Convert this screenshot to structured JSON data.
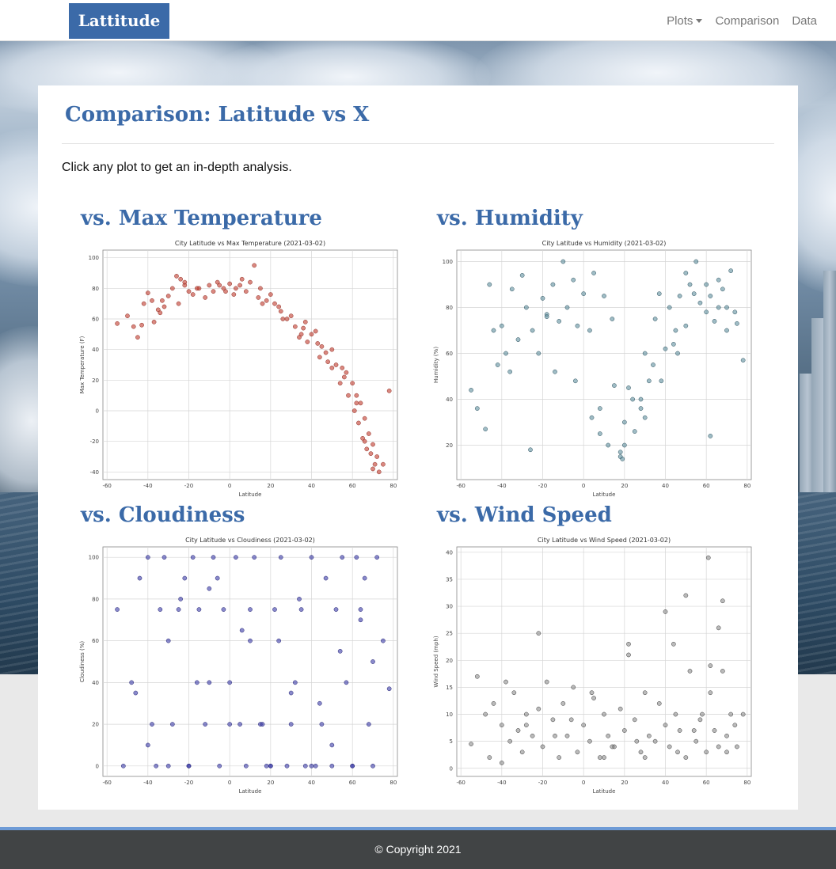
{
  "navbar": {
    "brand": "Lattitude",
    "links": [
      "Plots",
      "Comparison",
      "Data"
    ]
  },
  "main": {
    "title": "Comparison: Latitude vs X",
    "intro": "Click any plot to get an in-depth analysis.",
    "plots": [
      {
        "heading": "vs. Max Temperature"
      },
      {
        "heading": "vs. Humidity"
      },
      {
        "heading": "vs. Cloudiness"
      },
      {
        "heading": "vs. Wind Speed"
      }
    ]
  },
  "footer": {
    "text": "© Copyright 2021"
  },
  "chart_data": [
    {
      "type": "scatter",
      "title": "City Latitude vs Max Temperature (2021-03-02)",
      "xlabel": "Latitude",
      "ylabel": "Max Temperature (F)",
      "xlim": [
        -62,
        82
      ],
      "ylim": [
        -45,
        105
      ],
      "xticks": [
        -60,
        -40,
        -20,
        0,
        20,
        40,
        60,
        80
      ],
      "yticks": [
        -40,
        -20,
        0,
        20,
        40,
        60,
        80,
        100
      ],
      "color": "#c0392b",
      "stroke": "#8e2b20",
      "grid": true,
      "x": [
        -55,
        -50,
        -47,
        -45,
        -42,
        -40,
        -37,
        -35,
        -33,
        -30,
        -28,
        -25,
        -22,
        -20,
        -18,
        -15,
        -12,
        -10,
        -8,
        -5,
        -3,
        0,
        3,
        5,
        8,
        10,
        12,
        15,
        18,
        20,
        22,
        25,
        28,
        30,
        32,
        35,
        37,
        40,
        42,
        45,
        47,
        50,
        52,
        55,
        57,
        60,
        62,
        64,
        66,
        68,
        70,
        72,
        75,
        78,
        -38,
        -32,
        -26,
        -22,
        -16,
        -6,
        2,
        6,
        14,
        24,
        34,
        38,
        44,
        48,
        54,
        58,
        61,
        63,
        65,
        67,
        69,
        71,
        73,
        43,
        36,
        26,
        16,
        -2,
        -24,
        -34,
        -43,
        50,
        56,
        62,
        66,
        70
      ],
      "y": [
        57,
        62,
        55,
        48,
        70,
        77,
        58,
        66,
        72,
        75,
        80,
        70,
        82,
        78,
        76,
        80,
        74,
        82,
        78,
        82,
        80,
        83,
        80,
        82,
        78,
        84,
        95,
        80,
        72,
        76,
        70,
        65,
        60,
        62,
        55,
        50,
        58,
        50,
        52,
        42,
        38,
        40,
        30,
        28,
        25,
        18,
        10,
        5,
        -5,
        -15,
        -22,
        -30,
        -35,
        13,
        72,
        68,
        88,
        84,
        80,
        84,
        76,
        86,
        74,
        68,
        48,
        45,
        35,
        32,
        18,
        10,
        0,
        -8,
        -18,
        -25,
        -28,
        -35,
        -40,
        44,
        54,
        60,
        70,
        78,
        86,
        64,
        56,
        28,
        22,
        5,
        -20,
        -38
      ]
    },
    {
      "type": "scatter",
      "title": "City Latitude vs Humidity (2021-03-02)",
      "xlabel": "Latitude",
      "ylabel": "Humidity (%)",
      "xlim": [
        -62,
        82
      ],
      "ylim": [
        5,
        105
      ],
      "xticks": [
        -60,
        -40,
        -20,
        0,
        20,
        40,
        60,
        80
      ],
      "yticks": [
        20,
        40,
        60,
        80,
        100
      ],
      "color": "#5f8f9f",
      "stroke": "#2a4f5c",
      "grid": true,
      "x": [
        -55,
        -52,
        -48,
        -46,
        -44,
        -40,
        -38,
        -35,
        -32,
        -30,
        -28,
        -25,
        -22,
        -20,
        -18,
        -15,
        -12,
        -10,
        -8,
        -5,
        -3,
        0,
        3,
        5,
        8,
        10,
        12,
        15,
        18,
        20,
        22,
        25,
        28,
        30,
        32,
        35,
        37,
        40,
        42,
        45,
        47,
        50,
        52,
        55,
        57,
        60,
        62,
        64,
        66,
        68,
        70,
        72,
        75,
        78,
        -36,
        -26,
        -14,
        -4,
        4,
        14,
        18,
        19,
        20,
        24,
        30,
        34,
        38,
        44,
        50,
        54,
        60,
        62,
        66,
        70,
        74,
        8,
        -18,
        -42,
        28,
        46
      ],
      "y": [
        44,
        36,
        27,
        90,
        70,
        72,
        60,
        88,
        66,
        94,
        80,
        70,
        60,
        84,
        77,
        90,
        74,
        100,
        80,
        92,
        72,
        86,
        70,
        95,
        36,
        85,
        20,
        46,
        15,
        30,
        45,
        26,
        40,
        60,
        48,
        75,
        86,
        62,
        80,
        70,
        85,
        95,
        90,
        100,
        82,
        78,
        85,
        74,
        92,
        88,
        80,
        96,
        73,
        57,
        52,
        18,
        52,
        48,
        32,
        75,
        17,
        14,
        20,
        40,
        32,
        55,
        48,
        64,
        72,
        86,
        90,
        24,
        80,
        70,
        78,
        25,
        76,
        55,
        36,
        60
      ]
    },
    {
      "type": "scatter",
      "title": "City Latitude vs Cloudiness (2021-03-02)",
      "xlabel": "Latitude",
      "ylabel": "Cloudiness (%)",
      "xlim": [
        -62,
        82
      ],
      "ylim": [
        -5,
        105
      ],
      "xticks": [
        -60,
        -40,
        -20,
        0,
        20,
        40,
        60,
        80
      ],
      "yticks": [
        0,
        20,
        40,
        60,
        80,
        100
      ],
      "color": "#3a3aa8",
      "stroke": "#1f1f70",
      "grid": true,
      "x": [
        -55,
        -52,
        -48,
        -46,
        -44,
        -40,
        -38,
        -36,
        -34,
        -32,
        -30,
        -28,
        -25,
        -22,
        -20,
        -18,
        -15,
        -12,
        -10,
        -8,
        -5,
        -3,
        0,
        3,
        5,
        8,
        10,
        12,
        15,
        18,
        20,
        22,
        25,
        28,
        30,
        32,
        35,
        37,
        40,
        42,
        45,
        47,
        50,
        52,
        55,
        57,
        60,
        62,
        64,
        66,
        68,
        70,
        72,
        75,
        78,
        -30,
        -24,
        -16,
        -6,
        6,
        16,
        24,
        34,
        44,
        54,
        64,
        -20,
        0,
        20,
        40,
        60,
        10,
        30,
        50,
        70,
        -10,
        -40
      ],
      "y": [
        75,
        0,
        40,
        35,
        90,
        100,
        20,
        0,
        75,
        100,
        0,
        20,
        75,
        90,
        0,
        100,
        75,
        20,
        40,
        100,
        0,
        75,
        40,
        100,
        20,
        0,
        75,
        100,
        20,
        0,
        0,
        75,
        100,
        0,
        20,
        40,
        75,
        0,
        100,
        0,
        20,
        90,
        0,
        75,
        100,
        40,
        0,
        100,
        75,
        90,
        20,
        0,
        100,
        60,
        37,
        60,
        80,
        40,
        90,
        65,
        20,
        60,
        80,
        30,
        55,
        70,
        0,
        20,
        0,
        0,
        0,
        60,
        35,
        10,
        50,
        85,
        10
      ]
    },
    {
      "type": "scatter",
      "title": "City Latitude vs Wind Speed (2021-03-02)",
      "xlabel": "Latitude",
      "ylabel": "Wind Speed (mph)",
      "xlim": [
        -62,
        82
      ],
      "ylim": [
        -1.5,
        41
      ],
      "xticks": [
        -60,
        -40,
        -20,
        0,
        20,
        40,
        60,
        80
      ],
      "yticks": [
        0,
        5,
        10,
        15,
        20,
        25,
        30,
        35,
        40
      ],
      "color": "#8c8c8c",
      "stroke": "#3a3a3a",
      "grid": true,
      "x": [
        -55,
        -52,
        -48,
        -46,
        -44,
        -40,
        -38,
        -36,
        -34,
        -32,
        -30,
        -28,
        -25,
        -22,
        -20,
        -18,
        -15,
        -12,
        -10,
        -8,
        -5,
        -3,
        0,
        3,
        5,
        8,
        10,
        12,
        15,
        18,
        20,
        22,
        25,
        28,
        30,
        32,
        35,
        37,
        40,
        42,
        45,
        47,
        50,
        52,
        55,
        57,
        60,
        62,
        64,
        66,
        68,
        70,
        72,
        75,
        78,
        61,
        68,
        50,
        40,
        22,
        -22,
        -14,
        4,
        14,
        30,
        44,
        54,
        62,
        70,
        -40,
        -28,
        -6,
        10,
        26,
        46,
        58,
        66,
        74
      ],
      "y": [
        4.5,
        17,
        10,
        2,
        12,
        8,
        16,
        5,
        14,
        7,
        3,
        10,
        6,
        25,
        4,
        16,
        9,
        2,
        12,
        6,
        15,
        3,
        8,
        5,
        13,
        2,
        10,
        6,
        4,
        11,
        7,
        23,
        9,
        3,
        14,
        6,
        5,
        12,
        29,
        4,
        10,
        7,
        2,
        18,
        5,
        9,
        3,
        14,
        7,
        26,
        31,
        6,
        10,
        4,
        10,
        39,
        18,
        32,
        8,
        21,
        11,
        6,
        14,
        4,
        2,
        23,
        7,
        19,
        3,
        1,
        8,
        9,
        2,
        5,
        3,
        10,
        4,
        8
      ]
    }
  ]
}
